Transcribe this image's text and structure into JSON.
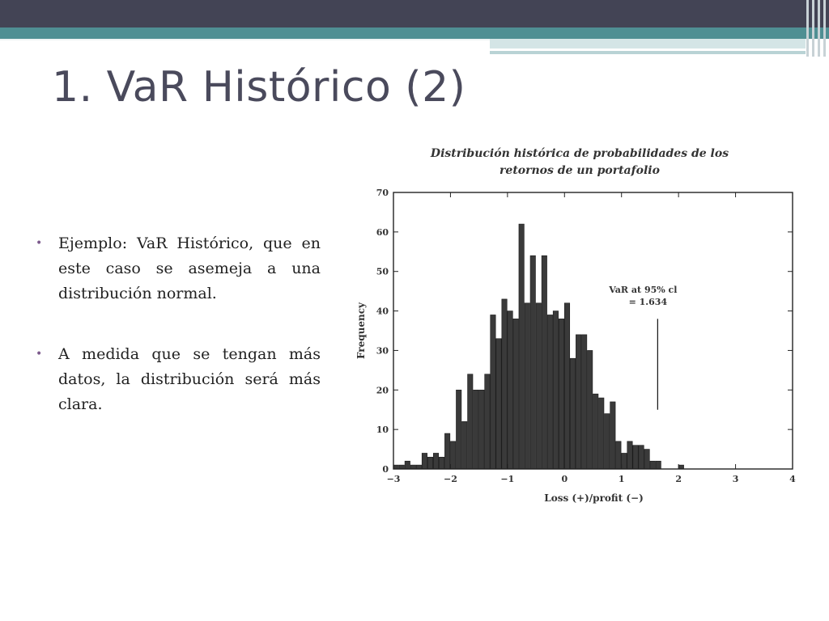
{
  "slide": {
    "title": "1. VaR Histórico (2)",
    "bullets": [
      "Ejemplo: VaR Histórico, que en este caso se asemeja a una distribución normal.",
      "A medida que se tengan más datos, la distribución será más clara."
    ]
  },
  "colors": {
    "header": "#434455",
    "accent": "#4f8f93",
    "bar": "#3a3a3a"
  },
  "chart_data": {
    "type": "bar",
    "title_line1": "Distribución histórica de probabilidades de los",
    "title_line2": "retornos de un portafolio",
    "xlabel": "Loss (+)/profit (−)",
    "ylabel": "Frequency",
    "xlim": [
      -3,
      4
    ],
    "ylim": [
      0,
      70
    ],
    "xticks": [
      -3,
      -2,
      -1,
      0,
      1,
      2,
      3,
      4
    ],
    "xtick_labels": [
      "−3",
      "−2",
      "−1",
      "0",
      "1",
      "2",
      "3",
      "4"
    ],
    "yticks": [
      0,
      10,
      20,
      30,
      40,
      50,
      60,
      70
    ],
    "ytick_labels": [
      "0",
      "10",
      "20",
      "30",
      "40",
      "50",
      "60",
      "70"
    ],
    "bin_width": 0.1,
    "bin_start": -3.0,
    "values": [
      1,
      1,
      2,
      1,
      1,
      4,
      3,
      4,
      3,
      9,
      7,
      20,
      12,
      24,
      20,
      20,
      24,
      39,
      33,
      43,
      40,
      38,
      62,
      42,
      54,
      42,
      54,
      39,
      40,
      38,
      42,
      28,
      34,
      34,
      30,
      19,
      18,
      14,
      17,
      7,
      4,
      7,
      6,
      6,
      5,
      2,
      2,
      0,
      0,
      0,
      1
    ],
    "annotation": {
      "line1": "VaR at 95% cl",
      "line2": "= 1.634",
      "x": 1.634
    }
  }
}
